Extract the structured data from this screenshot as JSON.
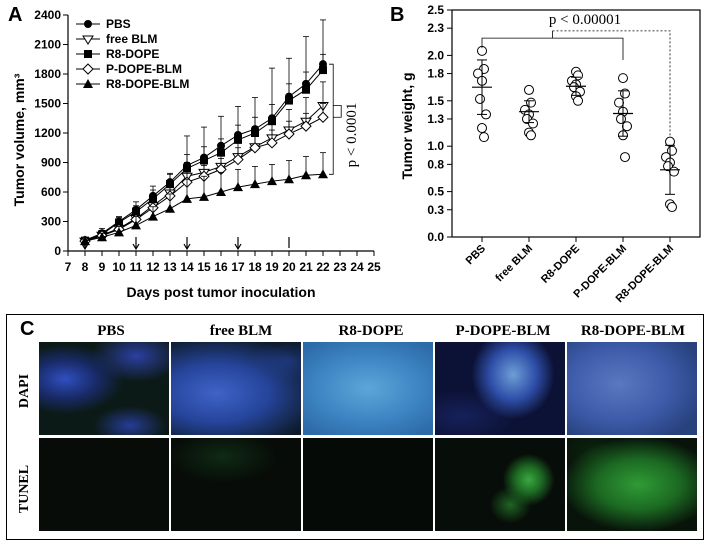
{
  "panels": {
    "a": "A",
    "b": "B",
    "c": "C"
  },
  "chart_data": [
    {
      "type": "line",
      "ylabel": "Tumor volume, mm³",
      "xlabel": "Days post tumor inoculation",
      "xlim": [
        7,
        25
      ],
      "ylim": [
        0,
        2400
      ],
      "xticks": [
        7,
        8,
        9,
        10,
        11,
        12,
        13,
        14,
        15,
        16,
        17,
        18,
        19,
        20,
        21,
        22,
        23,
        24,
        25
      ],
      "yticks": [
        0,
        300,
        600,
        900,
        1200,
        1500,
        1800,
        2100,
        2400
      ],
      "legend_position": "top-left",
      "x": [
        8,
        9,
        10,
        11,
        12,
        13,
        14,
        15,
        16,
        17,
        18,
        19,
        20,
        21,
        22
      ],
      "series": [
        {
          "name": "PBS",
          "marker": "filled-circle",
          "values": [
            110,
            180,
            300,
            420,
            560,
            700,
            870,
            950,
            1070,
            1180,
            1240,
            1350,
            1570,
            1700,
            1900
          ]
        },
        {
          "name": "free BLM",
          "marker": "open-triangle-down",
          "values": [
            100,
            160,
            230,
            330,
            460,
            590,
            760,
            800,
            860,
            960,
            1060,
            1150,
            1230,
            1320,
            1480
          ]
        },
        {
          "name": "R8-DOPE",
          "marker": "filled-square",
          "values": [
            105,
            170,
            290,
            400,
            530,
            680,
            840,
            920,
            1000,
            1130,
            1200,
            1320,
            1530,
            1640,
            1840
          ]
        },
        {
          "name": "P-DOPE-BLM",
          "marker": "open-diamond",
          "values": [
            100,
            155,
            220,
            320,
            440,
            560,
            700,
            760,
            830,
            930,
            1050,
            1100,
            1190,
            1270,
            1360
          ]
        },
        {
          "name": "R8-DOPE-BLM",
          "marker": "filled-triangle-up",
          "values": [
            100,
            140,
            190,
            260,
            350,
            430,
            530,
            550,
            600,
            650,
            680,
            710,
            730,
            770,
            780
          ]
        }
      ],
      "error_top": [
        [
          130,
          230,
          350,
          500,
          660,
          780,
          1170,
          1260,
          1370,
          1470,
          1560,
          1860,
          1960,
          2180,
          2350
        ],
        [
          120,
          200,
          270,
          390,
          540,
          700,
          900,
          960,
          1010,
          1120,
          1220,
          1340,
          1440,
          1560,
          1720
        ],
        [
          125,
          210,
          340,
          460,
          620,
          790,
          980,
          1060,
          1140,
          1280,
          1360,
          1490,
          1700,
          1820,
          2000
        ],
        [
          115,
          190,
          260,
          370,
          510,
          650,
          810,
          870,
          940,
          1050,
          1170,
          1230,
          1320,
          1400,
          1500
        ],
        [
          120,
          180,
          250,
          350,
          450,
          580,
          730,
          760,
          800,
          830,
          860,
          880,
          920,
          960,
          1000
        ]
      ],
      "arrows": [
        8,
        11,
        14,
        17,
        20
      ],
      "annotation": "p < 0.0001"
    },
    {
      "type": "scatter",
      "ylabel": "Tumor weight, g",
      "ylim": [
        0,
        2.5
      ],
      "yticks": [
        0.0,
        0.3,
        0.5,
        0.8,
        1.0,
        1.3,
        1.5,
        1.8,
        2.0,
        2.3,
        2.5
      ],
      "categories": [
        "PBS",
        "free BLM",
        "R8-DOPE",
        "P-DOPE-BLM",
        "R8-DOPE-BLM"
      ],
      "points": [
        [
          2.05,
          1.85,
          1.8,
          1.72,
          1.52,
          1.35,
          1.2,
          1.1
        ],
        [
          1.62,
          1.48,
          1.4,
          1.35,
          1.3,
          1.25,
          1.15,
          1.12
        ],
        [
          1.82,
          1.78,
          1.72,
          1.68,
          1.65,
          1.6,
          1.55,
          1.5
        ],
        [
          1.75,
          1.58,
          1.48,
          1.38,
          1.3,
          1.22,
          1.12,
          0.88
        ],
        [
          1.05,
          0.95,
          0.88,
          0.82,
          0.78,
          0.72,
          0.36,
          0.33
        ]
      ],
      "mean": [
        1.65,
        1.38,
        1.66,
        1.36,
        0.74
      ],
      "sd": [
        0.3,
        0.12,
        0.1,
        0.25,
        0.27
      ],
      "annotation": "p < 0.00001"
    }
  ],
  "micrographs": {
    "columns": [
      "PBS",
      "free BLM",
      "R8-DOPE",
      "P-DOPE-BLM",
      "R8-DOPE-BLM"
    ],
    "rows": [
      "DAPI",
      "TUNEL"
    ]
  }
}
